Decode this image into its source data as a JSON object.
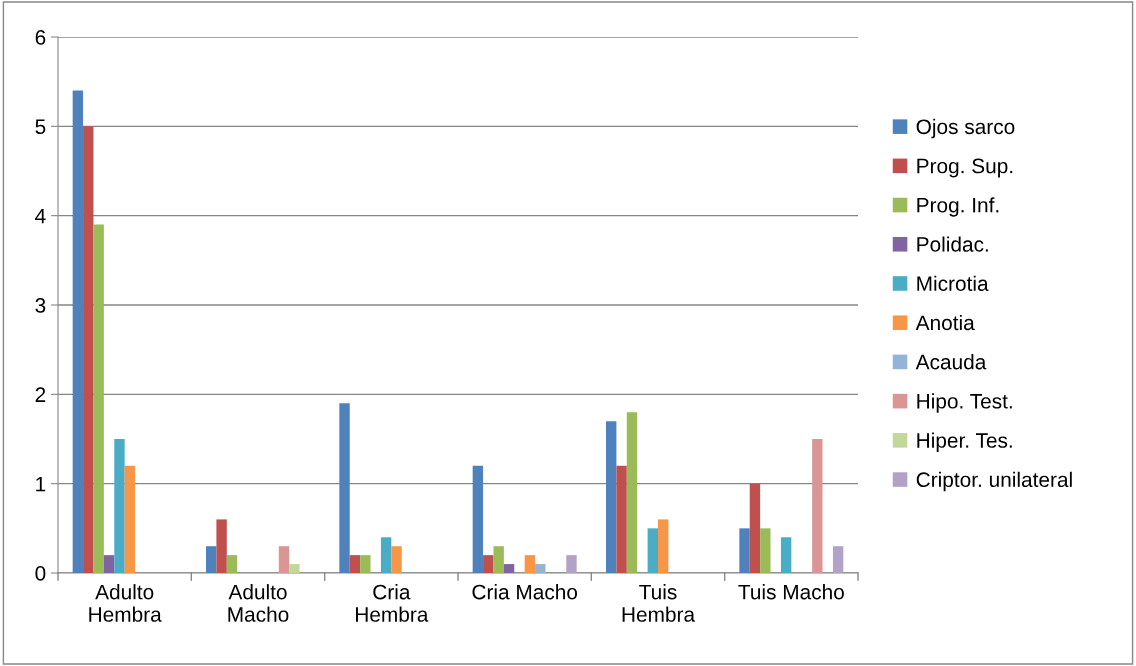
{
  "chart_data": {
    "type": "bar",
    "categories": [
      "Adulto\nHembra",
      "Adulto\nMacho",
      "Cria\nHembra",
      "Cria Macho",
      "Tuis\nHembra",
      "Tuis Macho"
    ],
    "series": [
      {
        "name": "Ojos sarco",
        "color": "#4f81bd",
        "values": [
          5.4,
          0.3,
          1.9,
          1.2,
          1.7,
          0.5
        ]
      },
      {
        "name": "Prog. Sup.",
        "color": "#c0504d",
        "values": [
          5.0,
          0.6,
          0.2,
          0.2,
          1.2,
          1.0
        ]
      },
      {
        "name": "Prog. Inf.",
        "color": "#9bbb59",
        "values": [
          3.9,
          0.2,
          0.2,
          0.3,
          1.8,
          0.5
        ]
      },
      {
        "name": "Polidac.",
        "color": "#8064a2",
        "values": [
          0.2,
          0,
          0,
          0.1,
          0,
          0
        ]
      },
      {
        "name": "Microtia",
        "color": "#4bacc6",
        "values": [
          1.5,
          0,
          0.4,
          0,
          0.5,
          0.4
        ]
      },
      {
        "name": "Anotia",
        "color": "#f79646",
        "values": [
          1.2,
          0,
          0.3,
          0.2,
          0.6,
          0
        ]
      },
      {
        "name": "Acauda",
        "color": "#95b3d7",
        "values": [
          0,
          0,
          0,
          0.1,
          0,
          0
        ]
      },
      {
        "name": "Hipo. Test.",
        "color": "#d99694",
        "values": [
          0,
          0.3,
          0,
          0,
          0,
          1.5
        ]
      },
      {
        "name": "Hiper. Tes.",
        "color": "#c3d69b",
        "values": [
          0,
          0.1,
          0,
          0,
          0,
          0
        ]
      },
      {
        "name": "Criptor. unilateral",
        "color": "#b3a2c7",
        "values": [
          0,
          0,
          0,
          0.2,
          0,
          0.3
        ]
      }
    ],
    "ylim": [
      0,
      6
    ],
    "yticks": [
      0,
      1,
      2,
      3,
      4,
      5,
      6
    ],
    "grid": "y",
    "legend": "right"
  }
}
